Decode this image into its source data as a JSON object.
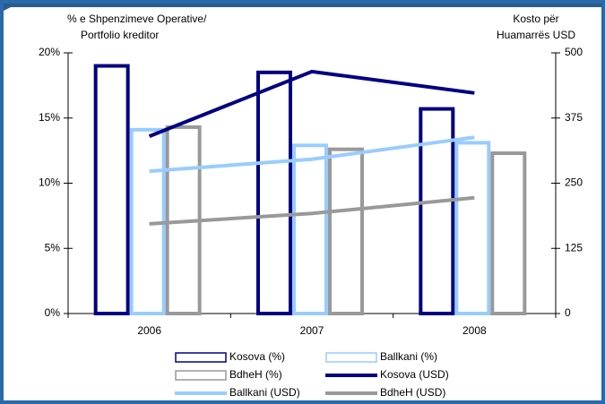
{
  "chart_data": {
    "type": "bar",
    "y_label": [
      "% e Shpenzimeve Operative/",
      "Portfolio kreditor"
    ],
    "y2_label": [
      "Kosto për",
      "Huamarrës USD"
    ],
    "categories": [
      "2006",
      "2007",
      "2008"
    ],
    "series": [
      {
        "name": "Kosova (%)",
        "color": "#000080",
        "values": [
          19,
          18.5,
          15.7
        ]
      },
      {
        "name": "Ballkani (%)",
        "color": "#99ccff",
        "values": [
          14.1,
          12.9,
          13.1
        ]
      },
      {
        "name": "BdheH (%)",
        "color": "#999999",
        "values": [
          14.3,
          12.6,
          12.3
        ]
      },
      {
        "name": "Kosova (USD)",
        "color": "#000080",
        "axis": "y2",
        "values": [
          340,
          464,
          423
        ]
      },
      {
        "name": "Ballkani (USD)",
        "color": "#99ccff",
        "axis": "y2",
        "values": [
          273,
          296,
          338
        ]
      },
      {
        "name": "BdheH (USD)",
        "color": "#999999",
        "axis": "y2",
        "values": [
          172,
          192,
          222
        ]
      }
    ],
    "ylim": [
      0,
      20
    ],
    "yticks": [
      {
        "value": 0,
        "label": "0%"
      },
      {
        "value": 5,
        "label": "5%"
      },
      {
        "value": 10,
        "label": "10%"
      },
      {
        "value": 15,
        "label": "15%"
      },
      {
        "value": 20,
        "label": "20%"
      }
    ],
    "y2lim": [
      0,
      500
    ],
    "y2ticks": [
      0,
      125,
      250,
      375,
      500
    ],
    "grid": false
  }
}
